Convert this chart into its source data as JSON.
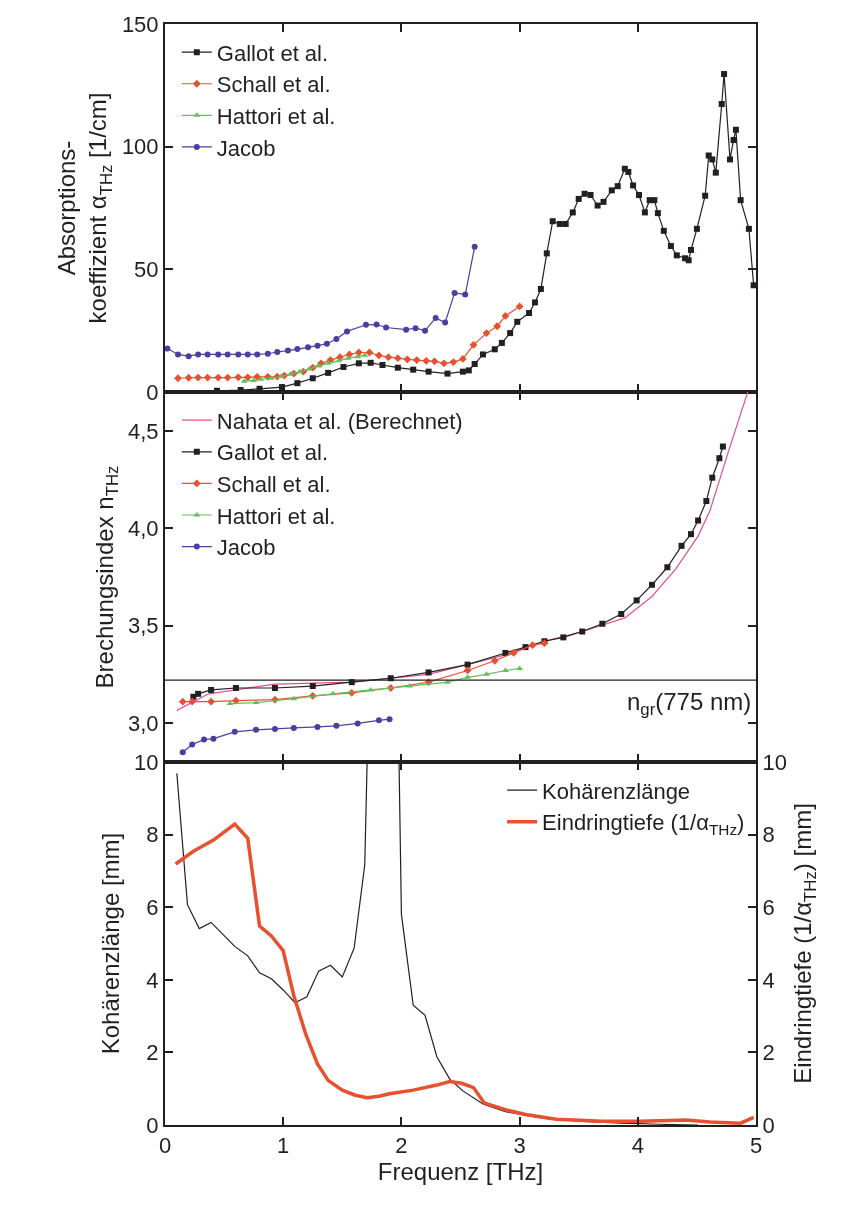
{
  "chart_data": [
    {
      "type": "line",
      "ylabel": "Absorptions-\nkoeffizient α$_{THz}$ [1/cm]",
      "xlim": [
        0,
        5
      ],
      "xticks": [
        0,
        1,
        2,
        3,
        4,
        5
      ],
      "ylim": [
        0,
        150
      ],
      "yticks": [
        0,
        50,
        100,
        150
      ],
      "tick_labels": "y",
      "legend": "top left",
      "series": [
        {
          "name": "Gallot et al.",
          "color": "#231f20",
          "marker": "square",
          "x": [
            0.44,
            0.64,
            0.8,
            0.99,
            1.12,
            1.25,
            1.38,
            1.51,
            1.64,
            1.74,
            1.84,
            1.97,
            2.1,
            2.23,
            2.39,
            2.52,
            2.57,
            2.62,
            2.69,
            2.79,
            2.85,
            2.92,
            2.98,
            3.08,
            3.13,
            3.18,
            3.23,
            3.28,
            3.34,
            3.39,
            3.45,
            3.5,
            3.55,
            3.6,
            3.66,
            3.71,
            3.78,
            3.83,
            3.89,
            3.92,
            3.96,
            4.01,
            4.06,
            4.1,
            4.14,
            4.17,
            4.22,
            4.28,
            4.33,
            4.4,
            4.43,
            4.45,
            4.5,
            4.57,
            4.6,
            4.63,
            4.66,
            4.71,
            4.73,
            4.78,
            4.81,
            4.83,
            4.87,
            4.94,
            4.98
          ],
          "values": [
            0.5,
            0.8,
            1.3,
            2,
            3.6,
            5.6,
            7.8,
            10.2,
            11.7,
            11.9,
            11,
            9.9,
            9.1,
            8.3,
            7.5,
            8.3,
            8.8,
            11.4,
            15.3,
            17.4,
            20,
            24,
            28.6,
            32.2,
            36.5,
            42,
            56.5,
            69.6,
            68.5,
            68.5,
            73.2,
            78.7,
            80.8,
            80.3,
            76,
            77.5,
            82.2,
            83.9,
            91,
            89.7,
            84.2,
            80.3,
            73.2,
            78.2,
            78.2,
            72.9,
            65.7,
            59.5,
            55.7,
            54.5,
            53.7,
            57.9,
            66.5,
            80,
            96.4,
            94.8,
            89.4,
            117.4,
            129.6,
            94.8,
            102.7,
            106.9,
            78.2,
            66.5,
            43.5
          ]
        },
        {
          "name": "Schall et al.",
          "color": "#e8502f",
          "marker": "diamond",
          "x": [
            0.11,
            0.2,
            0.28,
            0.36,
            0.45,
            0.53,
            0.62,
            0.7,
            0.78,
            0.87,
            0.95,
            1.01,
            1.09,
            1.17,
            1.25,
            1.32,
            1.4,
            1.48,
            1.56,
            1.64,
            1.73,
            1.81,
            1.89,
            1.97,
            2.05,
            2.13,
            2.21,
            2.28,
            2.36,
            2.44,
            2.52,
            2.61,
            2.72,
            2.81,
            2.88,
            3.0
          ],
          "values": [
            5.6,
            5.8,
            5.9,
            5.9,
            5.9,
            5.9,
            6,
            6,
            6.2,
            6.2,
            6.3,
            6.7,
            7.5,
            8.3,
            9.9,
            11.7,
            13,
            14.2,
            15.3,
            16.1,
            16.1,
            14.9,
            14.2,
            13.8,
            13.3,
            13,
            12.7,
            12.5,
            11.7,
            12.2,
            13.5,
            19.2,
            24,
            26.8,
            31,
            34.9
          ]
        },
        {
          "name": "Hattori et al.",
          "color": "#66bf5b",
          "marker": "triangle",
          "x": [
            0.67,
            0.75,
            0.81,
            0.9,
            0.98,
            1.06,
            1.14,
            1.22,
            1.3,
            1.38,
            1.47,
            1.55,
            1.63,
            1.69
          ],
          "values": [
            4.4,
            4.7,
            5.2,
            5.6,
            6.3,
            7.2,
            8.3,
            9.4,
            10.6,
            11.7,
            12.7,
            13.8,
            14.4,
            15
          ]
        },
        {
          "name": "Jacob",
          "color": "#4a3fa0",
          "marker": "circle",
          "x": [
            0.02,
            0.11,
            0.2,
            0.28,
            0.36,
            0.45,
            0.53,
            0.62,
            0.7,
            0.78,
            0.87,
            0.95,
            1.04,
            1.12,
            1.21,
            1.29,
            1.37,
            1.45,
            1.54,
            1.7,
            1.79,
            1.87,
            2.04,
            2.12,
            2.2,
            2.29,
            2.37,
            2.45,
            2.54,
            2.62
          ],
          "values": [
            17.7,
            15.3,
            14.6,
            15.3,
            15.3,
            15.3,
            15.3,
            15.3,
            15.3,
            15.3,
            15.6,
            16.3,
            16.9,
            17.5,
            18.2,
            18.9,
            19.7,
            21.6,
            24.7,
            27.4,
            27.5,
            26.3,
            25.4,
            26,
            25,
            30.2,
            28.3,
            40.4,
            39.7,
            59.2
          ]
        }
      ]
    },
    {
      "type": "line",
      "ylabel": "Brechungsindex n$_{THz}$",
      "xlim": [
        0,
        5
      ],
      "xticks": [
        0,
        1,
        2,
        3,
        4,
        5
      ],
      "ylim": [
        2.8,
        4.7
      ],
      "yticks": [
        {
          "value": 3,
          "label": "3,0"
        },
        {
          "value": 3.5,
          "label": "3,5"
        },
        {
          "value": 4,
          "label": "4,0"
        },
        {
          "value": 4.5,
          "label": "4,5"
        }
      ],
      "tick_labels": "y",
      "legend": "top left",
      "ref_lines": [
        {
          "axis": "y",
          "value": 3.22,
          "label": "n$_{gr}$(775 nm)",
          "color": "#231f20"
        }
      ],
      "series": [
        {
          "name": "Nahata et al. (Berechnet)",
          "color": "#e0509a",
          "marker": "none",
          "x": [
            0.1,
            0.37,
            0.93,
            1.58,
            2.23,
            2.88,
            3.21,
            3.53,
            3.89,
            4.12,
            4.32,
            4.51,
            4.61,
            4.77,
            4.93
          ],
          "values": [
            3.065,
            3.15,
            3.2,
            3.21,
            3.25,
            3.35,
            3.42,
            3.47,
            3.54,
            3.65,
            3.79,
            3.96,
            4.09,
            4.4,
            4.7
          ]
        },
        {
          "name": "Gallot et al.",
          "color": "#231f20",
          "marker": "square",
          "x": [
            0.24,
            0.28,
            0.39,
            0.6,
            0.93,
            1.25,
            1.58,
            1.91,
            2.23,
            2.56,
            2.88,
            3.05,
            3.21,
            3.37,
            3.53,
            3.7,
            3.86,
            3.99,
            4.12,
            4.25,
            4.37,
            4.45,
            4.51,
            4.58,
            4.63,
            4.69,
            4.72
          ],
          "values": [
            3.135,
            3.15,
            3.17,
            3.18,
            3.18,
            3.19,
            3.21,
            3.23,
            3.26,
            3.3,
            3.36,
            3.39,
            3.42,
            3.44,
            3.47,
            3.51,
            3.56,
            3.63,
            3.71,
            3.8,
            3.91,
            3.97,
            4.04,
            4.14,
            4.26,
            4.36,
            4.42
          ]
        },
        {
          "name": "Schall et al.",
          "color": "#e8502f",
          "marker": "diamond",
          "x": [
            0.15,
            0.23,
            0.39,
            0.6,
            0.93,
            1.25,
            1.58,
            1.91,
            2.23,
            2.56,
            2.79,
            2.95,
            3.11,
            3.21
          ],
          "values": [
            3.11,
            3.11,
            3.11,
            3.115,
            3.12,
            3.14,
            3.155,
            3.18,
            3.21,
            3.27,
            3.32,
            3.36,
            3.4,
            3.41
          ]
        },
        {
          "name": "Hattori et al.",
          "color": "#66bf5b",
          "marker": "triangle",
          "x": [
            0.55,
            0.77,
            1.09,
            1.42,
            1.74,
            2.07,
            2.39,
            2.56,
            2.72,
            2.88,
            3.0
          ],
          "values": [
            3.1,
            3.105,
            3.125,
            3.15,
            3.17,
            3.19,
            3.21,
            3.235,
            3.25,
            3.27,
            3.28
          ]
        },
        {
          "name": "Jacob",
          "color": "#4a3fa0",
          "marker": "circle",
          "x": [
            0.15,
            0.23,
            0.33,
            0.41,
            0.59,
            0.77,
            0.93,
            1.09,
            1.29,
            1.45,
            1.63,
            1.81,
            1.9
          ],
          "values": [
            2.85,
            2.89,
            2.915,
            2.92,
            2.955,
            2.965,
            2.97,
            2.975,
            2.98,
            2.986,
            2.998,
            3.014,
            3.02
          ]
        }
      ]
    },
    {
      "type": "line",
      "xlabel": "Frequenz [THz]",
      "ylabel": "Kohärenzlänge [mm]",
      "y2label": "Eindringtiefe (1/α$_{THz}$) [mm]",
      "xlim": [
        0,
        5
      ],
      "xticks": [
        0,
        1,
        2,
        3,
        4,
        5
      ],
      "ylim": [
        0,
        10
      ],
      "yticks": [
        0,
        2,
        4,
        6,
        8,
        10
      ],
      "y2lim": [
        0,
        10
      ],
      "y2ticks": [
        0,
        2,
        4,
        6,
        8,
        10
      ],
      "legend": "top right",
      "series": [
        {
          "name": "Kohärenzlänge",
          "color": "#231f20",
          "marker": "none",
          "x": [
            0.1,
            0.19,
            0.29,
            0.39,
            0.59,
            0.7,
            0.8,
            0.9,
            1.0,
            1.1,
            1.2,
            1.3,
            1.4,
            1.5,
            1.6,
            1.69,
            1.71,
            1.98,
            2.0,
            2.1,
            2.2,
            2.3,
            2.41,
            2.52,
            2.69,
            2.88,
            3.21,
            3.53,
            3.86,
            4.19,
            4.51
          ],
          "values": [
            9.69,
            6.07,
            5.41,
            5.58,
            4.92,
            4.66,
            4.19,
            4.03,
            3.72,
            3.37,
            3.53,
            4.24,
            4.4,
            4.08,
            4.87,
            7.17,
            10,
            10,
            5.81,
            3.3,
            3.02,
            1.88,
            1.26,
            0.94,
            0.58,
            0.37,
            0.18,
            0.1,
            0.05,
            0.02,
            0
          ]
        },
        {
          "name": "Eindringtiefe (1/α$_{THz}$)",
          "color": "#e8502f",
          "marker": "none",
          "axis": "y2",
          "x": [
            0.09,
            0.24,
            0.41,
            0.59,
            0.7,
            0.8,
            0.9,
            1.0,
            1.09,
            1.19,
            1.29,
            1.38,
            1.5,
            1.61,
            1.71,
            1.81,
            1.9,
            2.1,
            2.3,
            2.41,
            2.51,
            2.61,
            2.7,
            2.88,
            3.05,
            3.31,
            3.7,
            4.02,
            4.41,
            4.61,
            4.87,
            4.98
          ],
          "values": [
            7.19,
            7.54,
            7.85,
            8.29,
            7.9,
            5.48,
            5.21,
            4.8,
            3.56,
            2.51,
            1.68,
            1.23,
            0.96,
            0.82,
            0.75,
            0.79,
            0.86,
            0.96,
            1.1,
            1.2,
            1.15,
            1.03,
            0.61,
            0.42,
            0.29,
            0.16,
            0.1,
            0.1,
            0.14,
            0.08,
            0.05,
            0.21
          ]
        }
      ]
    }
  ]
}
